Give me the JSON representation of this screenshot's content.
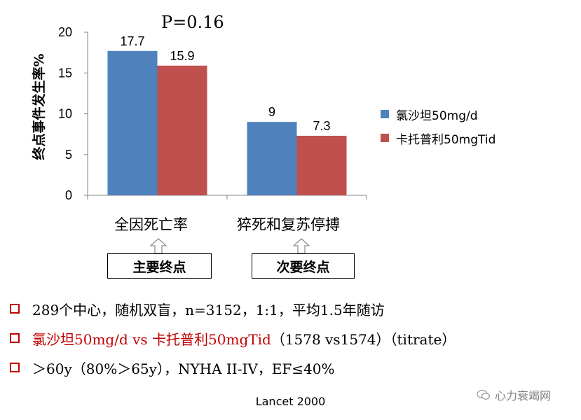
{
  "chart_data": {
    "type": "bar",
    "ylabel": "终点事件发生率%",
    "ylim": [
      0,
      20
    ],
    "yticks": [
      0,
      5,
      10,
      15,
      20
    ],
    "categories": [
      "全因死亡率",
      "猝死和复苏停搏"
    ],
    "series": [
      {
        "name": "氯沙坦50mg/d",
        "color": "#4f81bd",
        "values": [
          17.7,
          9
        ],
        "labels": [
          "17.7",
          "9"
        ]
      },
      {
        "name": "卡托普利50mgTid",
        "color": "#c0504d",
        "values": [
          15.9,
          7.3
        ],
        "labels": [
          "15.9",
          "7.3"
        ]
      }
    ],
    "annotation": "P=0.16",
    "legend_position": "right"
  },
  "endpoints": [
    "主要终点",
    "次要终点"
  ],
  "bullets": [
    {
      "text": "289个中心，随机双盲，n=3152，1:1，平均1.5年随访",
      "highlight": false
    },
    {
      "text": "氯沙坦50mg/d vs 卡托普利50mgTid",
      "text_tail": "（1578 vs1574）（titrate）",
      "highlight": true
    },
    {
      "text": "＞60y（80%＞65y），NYHA II-IV，EF≤40%",
      "highlight": false
    }
  ],
  "citation": "Lancet 2000",
  "watermark": "心力衰竭网",
  "colors": {
    "accent": "#c00000",
    "axis": "#868686"
  }
}
